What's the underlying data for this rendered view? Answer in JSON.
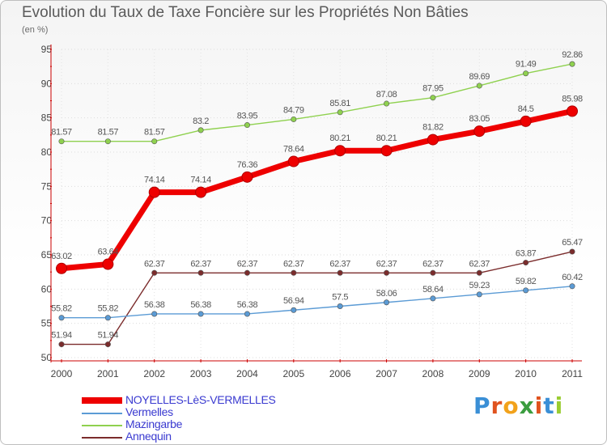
{
  "title": "Evolution du Taux de Taxe Foncière sur les Propriétés Non Bâties",
  "unit_label": "(en %)",
  "logo": {
    "letters": [
      "P",
      "r",
      "o",
      "x",
      "i",
      "t",
      "i"
    ],
    "colors": [
      "#3a8fd6",
      "#e0531f",
      "#f2a21b",
      "#3b9d3f",
      "#e0531f",
      "#3a8fd6",
      "#9acd32"
    ]
  },
  "chart_data": {
    "type": "line",
    "title": "Evolution du Taux de Taxe Foncière sur les Propriétés Non Bâties",
    "ylabel": "(en %)",
    "xlabel": "",
    "x": [
      "2000",
      "2001",
      "2002",
      "2003",
      "2004",
      "2005",
      "2006",
      "2007",
      "2008",
      "2009",
      "2010",
      "2011"
    ],
    "ylim": [
      50,
      95
    ],
    "yticks": [
      50,
      55,
      60,
      65,
      70,
      75,
      80,
      85,
      90,
      95
    ],
    "grid": true,
    "legend": "bottom-left",
    "series": [
      {
        "name": "NOYELLES-LèS-VERMELLES",
        "color": "#ee0000",
        "values": [
          63.02,
          63.64,
          74.14,
          74.14,
          76.36,
          78.64,
          80.21,
          80.21,
          81.82,
          83.05,
          84.5,
          85.98
        ],
        "labels": [
          "63.02",
          "63.64",
          "74.14",
          "74.14",
          "76.36",
          "78.64",
          "80.21",
          "80.21",
          "81.82",
          "83.05",
          "84.5",
          "85.98"
        ]
      },
      {
        "name": "Vermelles",
        "color": "#5b9bd5",
        "values": [
          55.82,
          55.82,
          56.38,
          56.38,
          56.38,
          56.94,
          57.5,
          58.06,
          58.64,
          59.23,
          59.82,
          60.42
        ],
        "labels": [
          "55.82",
          "55.82",
          "56.38",
          "56.38",
          "56.38",
          "56.94",
          "57.5",
          "58.06",
          "58.64",
          "59.23",
          "59.82",
          "60.42"
        ]
      },
      {
        "name": "Mazingarbe",
        "color": "#8fd14f",
        "values": [
          81.57,
          81.57,
          81.57,
          83.2,
          83.95,
          84.79,
          85.81,
          87.08,
          87.95,
          89.69,
          91.49,
          92.86
        ],
        "labels": [
          "81.57",
          "81.57",
          "81.57",
          "83.2",
          "83.95",
          "84.79",
          "85.81",
          "87.08",
          "87.95",
          "89.69",
          "91.49",
          "92.86"
        ]
      },
      {
        "name": "Annequin",
        "color": "#7b2c2c",
        "values": [
          51.94,
          51.94,
          62.37,
          62.37,
          62.37,
          62.37,
          62.37,
          62.37,
          62.37,
          62.37,
          63.87,
          65.47
        ],
        "labels": [
          "51.94",
          "51.94",
          "62.37",
          "62.37",
          "62.37",
          "62.37",
          "62.37",
          "62.37",
          "62.37",
          "62.37",
          "63.87",
          "65.47"
        ]
      }
    ]
  }
}
